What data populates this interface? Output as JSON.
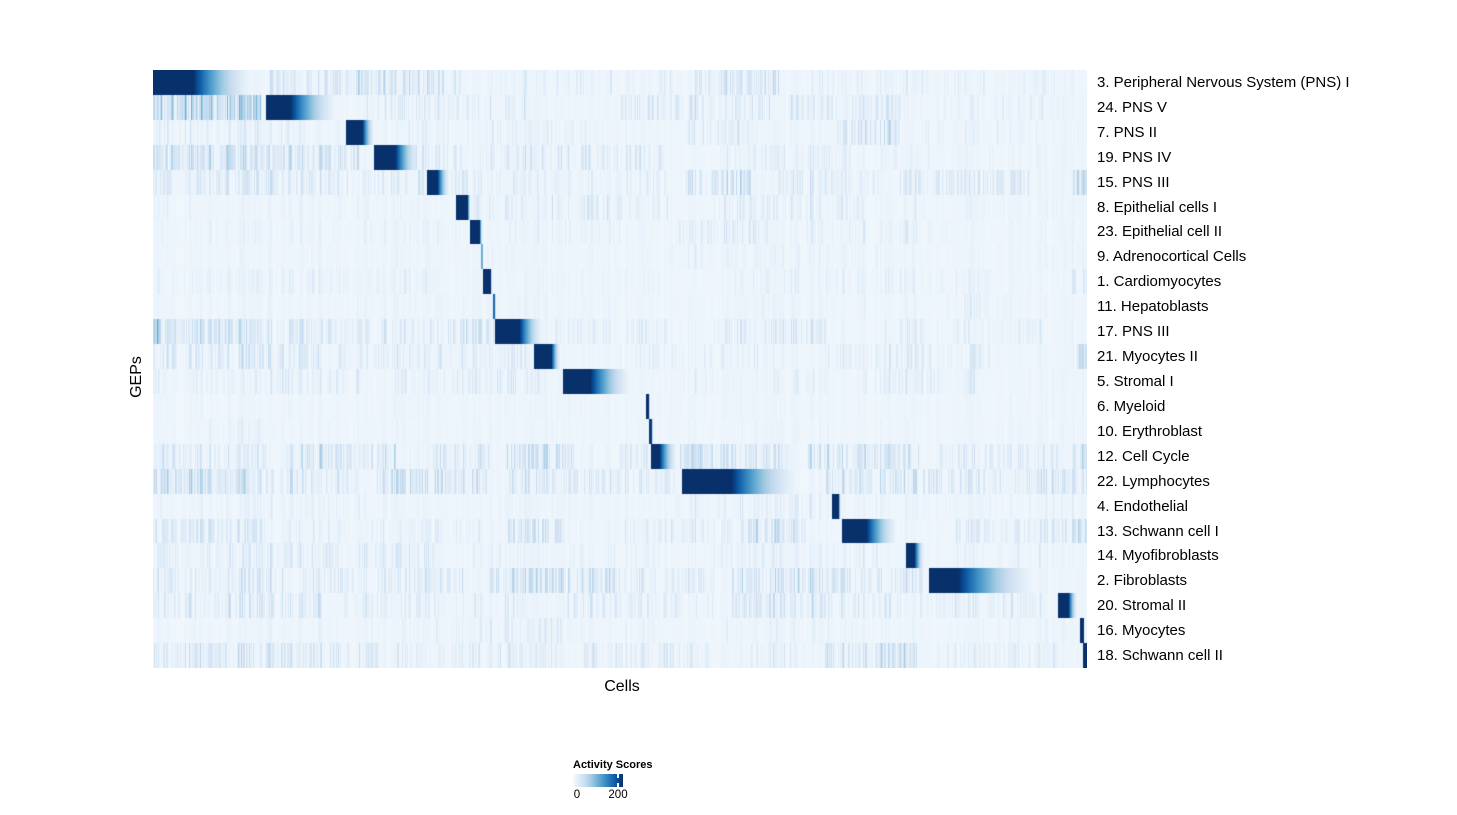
{
  "chart_data": {
    "type": "heatmap",
    "title": "",
    "xlabel": "Cells",
    "ylabel": "GEPs",
    "n_cols": 934,
    "grid": false,
    "legend_position": "bottom-center",
    "colorbar": {
      "title": "Activity Scores",
      "ticks": [
        {
          "label": "0",
          "frac": 0.0
        },
        {
          "label": "200",
          "frac": 0.88
        }
      ],
      "value_domain": [
        0,
        230
      ]
    },
    "colormap": [
      "#F7FBFF",
      "#DEEBF7",
      "#C6DBEF",
      "#9ECAE1",
      "#6BAED6",
      "#4292C6",
      "#2171B5",
      "#08519C",
      "#08306B"
    ],
    "background_value": 0.04,
    "base_noise": {
      "density": 0.4,
      "intensity": 0.09
    },
    "rows": [
      {
        "label": "3. Peripheral Nervous System (PNS) I",
        "block": [
          0.0,
          0.0428,
          0.1221,
          1.0
        ],
        "noise_bands": [
          [
            0.125,
            0.33,
            0.55,
            0.38
          ],
          [
            0.36,
            0.56,
            0.25,
            0.2
          ],
          [
            0.58,
            0.67,
            0.55,
            0.35
          ],
          [
            0.7,
            0.98,
            0.3,
            0.2
          ]
        ]
      },
      {
        "label": "24. PNS V",
        "block": [
          0.1207,
          0.1467,
          0.2098,
          1.0
        ],
        "noise_bands": [
          [
            0.0,
            0.115,
            0.75,
            0.6
          ],
          [
            0.23,
            0.42,
            0.35,
            0.25
          ],
          [
            0.5,
            0.66,
            0.45,
            0.3
          ],
          [
            0.68,
            0.8,
            0.5,
            0.3
          ],
          [
            0.84,
            0.97,
            0.35,
            0.22
          ]
        ]
      },
      {
        "label": "7. PNS II",
        "block": [
          0.2066,
          0.2238,
          0.2398,
          1.0
        ],
        "noise_bands": [
          [
            0.0,
            0.2,
            0.4,
            0.22
          ],
          [
            0.27,
            0.5,
            0.3,
            0.18
          ],
          [
            0.57,
            0.64,
            0.45,
            0.28
          ],
          [
            0.73,
            0.8,
            0.6,
            0.38
          ],
          [
            0.82,
            0.95,
            0.3,
            0.18
          ]
        ]
      },
      {
        "label": "19. PNS IV",
        "block": [
          0.2369,
          0.2591,
          0.2901,
          1.0
        ],
        "noise_bands": [
          [
            0.0,
            0.1,
            0.7,
            0.45
          ],
          [
            0.1,
            0.22,
            0.55,
            0.35
          ],
          [
            0.26,
            0.33,
            0.5,
            0.3
          ],
          [
            0.35,
            0.55,
            0.45,
            0.28
          ],
          [
            0.6,
            0.75,
            0.4,
            0.22
          ],
          [
            0.78,
            0.95,
            0.3,
            0.18
          ]
        ]
      },
      {
        "label": "15. PNS III",
        "block": [
          0.293,
          0.3044,
          0.3201,
          1.0
        ],
        "noise_bands": [
          [
            0.0,
            0.14,
            0.55,
            0.3
          ],
          [
            0.14,
            0.3,
            0.45,
            0.25
          ],
          [
            0.32,
            0.34,
            0.6,
            0.25
          ],
          [
            0.34,
            0.55,
            0.35,
            0.2
          ],
          [
            0.57,
            0.64,
            0.6,
            0.4
          ],
          [
            0.67,
            0.78,
            0.45,
            0.28
          ],
          [
            0.8,
            0.94,
            0.55,
            0.3
          ],
          [
            0.985,
            1.0,
            0.7,
            0.4
          ]
        ]
      },
      {
        "label": "8. Epithelial cells I",
        "block": [
          0.3244,
          0.3365,
          0.3405,
          1.0
        ],
        "noise_bands": [
          [
            0.0,
            0.3,
            0.25,
            0.15
          ],
          [
            0.34,
            0.56,
            0.35,
            0.25
          ],
          [
            0.6,
            0.76,
            0.45,
            0.25
          ],
          [
            0.78,
            1.0,
            0.25,
            0.15
          ]
        ]
      },
      {
        "label": "23. Epithelial cell II",
        "block": [
          0.3394,
          0.3494,
          0.3533,
          1.0
        ],
        "noise_bands": [
          [
            0.0,
            0.33,
            0.25,
            0.15
          ],
          [
            0.38,
            0.5,
            0.3,
            0.2
          ],
          [
            0.56,
            0.66,
            0.45,
            0.28
          ],
          [
            0.7,
            0.85,
            0.35,
            0.2
          ]
        ]
      },
      {
        "label": "9. Adrenocortical Cells",
        "block": [
          0.3512,
          0.3526,
          0.353,
          0.5
        ],
        "noise_bands": [
          [
            0.0,
            0.5,
            0.3,
            0.1
          ],
          [
            0.55,
            0.8,
            0.35,
            0.15
          ],
          [
            0.85,
            1.0,
            0.25,
            0.1
          ]
        ]
      },
      {
        "label": "1. Cardiomyocytes",
        "block": [
          0.3533,
          0.3603,
          0.363,
          1.0
        ],
        "noise_bands": [
          [
            0.0,
            0.3,
            0.4,
            0.18
          ],
          [
            0.4,
            0.56,
            0.25,
            0.12
          ],
          [
            0.6,
            0.9,
            0.35,
            0.18
          ],
          [
            0.985,
            1.0,
            0.5,
            0.3
          ]
        ]
      },
      {
        "label": "11. Hepatoblasts",
        "block": [
          0.3637,
          0.3651,
          0.3672,
          0.78
        ],
        "noise_bands": [
          [
            0.0,
            0.55,
            0.3,
            0.1
          ],
          [
            0.6,
            0.82,
            0.3,
            0.12
          ],
          [
            0.85,
            0.92,
            0.4,
            0.2
          ]
        ]
      },
      {
        "label": "17. PNS III",
        "block": [
          0.3662,
          0.3919,
          0.4229,
          1.0
        ],
        "noise_bands": [
          [
            0.0,
            0.006,
            1.0,
            0.9
          ],
          [
            0.006,
            0.1,
            0.65,
            0.4
          ],
          [
            0.1,
            0.3,
            0.45,
            0.28
          ],
          [
            0.3,
            0.365,
            0.55,
            0.35
          ],
          [
            0.43,
            0.55,
            0.35,
            0.22
          ],
          [
            0.6,
            0.72,
            0.45,
            0.28
          ],
          [
            0.78,
            0.95,
            0.35,
            0.22
          ]
        ]
      },
      {
        "label": "21. Myocytes II",
        "block": [
          0.4079,
          0.4256,
          0.4379,
          1.0
        ],
        "noise_bands": [
          [
            0.0,
            0.18,
            0.55,
            0.32
          ],
          [
            0.2,
            0.4,
            0.4,
            0.25
          ],
          [
            0.5,
            0.68,
            0.35,
            0.2
          ],
          [
            0.72,
            0.9,
            0.4,
            0.25
          ],
          [
            0.988,
            1.0,
            0.8,
            0.5
          ]
        ]
      },
      {
        "label": "5. Stromal I",
        "block": [
          0.4386,
          0.4679,
          0.522,
          1.0
        ],
        "noise_bands": [
          [
            0.0,
            0.22,
            0.4,
            0.22
          ],
          [
            0.26,
            0.42,
            0.4,
            0.25
          ],
          [
            0.56,
            0.72,
            0.3,
            0.18
          ],
          [
            0.76,
            0.88,
            0.45,
            0.25
          ]
        ]
      },
      {
        "label": "6. Myeloid",
        "block": [
          0.5278,
          0.5305,
          0.5321,
          1.0
        ],
        "noise_bands": [
          [
            0.0,
            0.5,
            0.25,
            0.08
          ],
          [
            0.55,
            1.0,
            0.25,
            0.08
          ]
        ]
      },
      {
        "label": "10. Erythroblast",
        "block": [
          0.531,
          0.5332,
          0.5353,
          0.95
        ],
        "noise_bands": [
          [
            0.06,
            0.14,
            0.35,
            0.15
          ],
          [
            0.2,
            0.6,
            0.25,
            0.08
          ],
          [
            0.65,
            1.0,
            0.25,
            0.08
          ]
        ]
      },
      {
        "label": "12. Cell Cycle",
        "block": [
          0.5332,
          0.5417,
          0.5653,
          1.0
        ],
        "noise_bands": [
          [
            0.0,
            0.12,
            0.5,
            0.3
          ],
          [
            0.14,
            0.26,
            0.55,
            0.35
          ],
          [
            0.3,
            0.36,
            0.5,
            0.3
          ],
          [
            0.38,
            0.45,
            0.55,
            0.38
          ],
          [
            0.5,
            0.53,
            0.45,
            0.28
          ],
          [
            0.565,
            0.62,
            0.8,
            0.45
          ],
          [
            0.62,
            0.68,
            0.5,
            0.3
          ],
          [
            0.7,
            0.82,
            0.55,
            0.38
          ],
          [
            0.84,
            0.97,
            0.45,
            0.3
          ],
          [
            0.985,
            1.0,
            0.6,
            0.35
          ]
        ]
      },
      {
        "label": "22. Lymphocytes",
        "block": [
          0.5664,
          0.6188,
          0.7088,
          1.0
        ],
        "noise_bands": [
          [
            0.0,
            0.1,
            0.7,
            0.45
          ],
          [
            0.1,
            0.22,
            0.55,
            0.32
          ],
          [
            0.24,
            0.36,
            0.55,
            0.38
          ],
          [
            0.38,
            0.5,
            0.5,
            0.3
          ],
          [
            0.5,
            0.56,
            0.45,
            0.28
          ],
          [
            0.72,
            0.84,
            0.55,
            0.38
          ],
          [
            0.84,
            0.94,
            0.45,
            0.3
          ],
          [
            0.94,
            1.0,
            0.5,
            0.32
          ]
        ]
      },
      {
        "label": "4. Endothelial",
        "block": [
          0.727,
          0.7334,
          0.7366,
          1.0
        ],
        "noise_bands": [
          [
            0.0,
            0.25,
            0.35,
            0.15
          ],
          [
            0.3,
            0.5,
            0.25,
            0.12
          ],
          [
            0.56,
            0.72,
            0.4,
            0.2
          ],
          [
            0.74,
            1.0,
            0.3,
            0.15
          ]
        ]
      },
      {
        "label": "13. Schwann cell I",
        "block": [
          0.7377,
          0.7634,
          0.805,
          1.0
        ],
        "noise_bands": [
          [
            0.0,
            0.12,
            0.55,
            0.32
          ],
          [
            0.14,
            0.35,
            0.35,
            0.2
          ],
          [
            0.38,
            0.44,
            0.55,
            0.32
          ],
          [
            0.5,
            0.62,
            0.4,
            0.25
          ],
          [
            0.63,
            0.7,
            0.55,
            0.35
          ],
          [
            0.86,
            0.98,
            0.4,
            0.25
          ],
          [
            0.985,
            1.0,
            0.7,
            0.4
          ]
        ]
      },
      {
        "label": "14. Myofibroblasts",
        "block": [
          0.8062,
          0.8148,
          0.8276,
          1.0
        ],
        "noise_bands": [
          [
            0.0,
            0.3,
            0.45,
            0.25
          ],
          [
            0.34,
            0.56,
            0.3,
            0.15
          ],
          [
            0.6,
            0.78,
            0.4,
            0.2
          ],
          [
            0.86,
            0.95,
            0.35,
            0.18
          ]
        ]
      },
      {
        "label": "2. Fibroblasts",
        "block": [
          0.8308,
          0.8619,
          0.9636,
          1.0
        ],
        "noise_bands": [
          [
            0.0,
            0.14,
            0.5,
            0.3
          ],
          [
            0.16,
            0.34,
            0.45,
            0.28
          ],
          [
            0.36,
            0.5,
            0.55,
            0.38
          ],
          [
            0.5,
            0.6,
            0.45,
            0.28
          ],
          [
            0.62,
            0.78,
            0.55,
            0.35
          ],
          [
            0.79,
            0.825,
            0.5,
            0.3
          ]
        ]
      },
      {
        "label": "20. Stromal II",
        "block": [
          0.969,
          0.9797,
          0.9915,
          1.0
        ],
        "noise_bands": [
          [
            0.0,
            0.18,
            0.5,
            0.3
          ],
          [
            0.2,
            0.4,
            0.4,
            0.22
          ],
          [
            0.44,
            0.6,
            0.4,
            0.25
          ],
          [
            0.62,
            0.8,
            0.5,
            0.3
          ],
          [
            0.82,
            0.95,
            0.4,
            0.25
          ]
        ]
      },
      {
        "label": "16. Myocytes",
        "block": [
          0.9925,
          0.9952,
          0.9968,
          1.0
        ],
        "noise_bands": [
          [
            0.0,
            0.28,
            0.3,
            0.12
          ],
          [
            0.3,
            0.45,
            0.4,
            0.2
          ],
          [
            0.5,
            0.62,
            0.3,
            0.15
          ],
          [
            0.66,
            0.8,
            0.3,
            0.15
          ],
          [
            0.85,
            0.98,
            0.3,
            0.12
          ]
        ]
      },
      {
        "label": "18. Schwann cell II",
        "block": [
          0.9957,
          1.0,
          1.0,
          1.0
        ],
        "noise_bands": [
          [
            0.0,
            0.24,
            0.55,
            0.32
          ],
          [
            0.26,
            0.44,
            0.4,
            0.25
          ],
          [
            0.46,
            0.6,
            0.5,
            0.3
          ],
          [
            0.64,
            0.7,
            0.35,
            0.2
          ],
          [
            0.72,
            0.82,
            0.6,
            0.38
          ],
          [
            0.84,
            0.97,
            0.4,
            0.25
          ]
        ]
      }
    ]
  }
}
